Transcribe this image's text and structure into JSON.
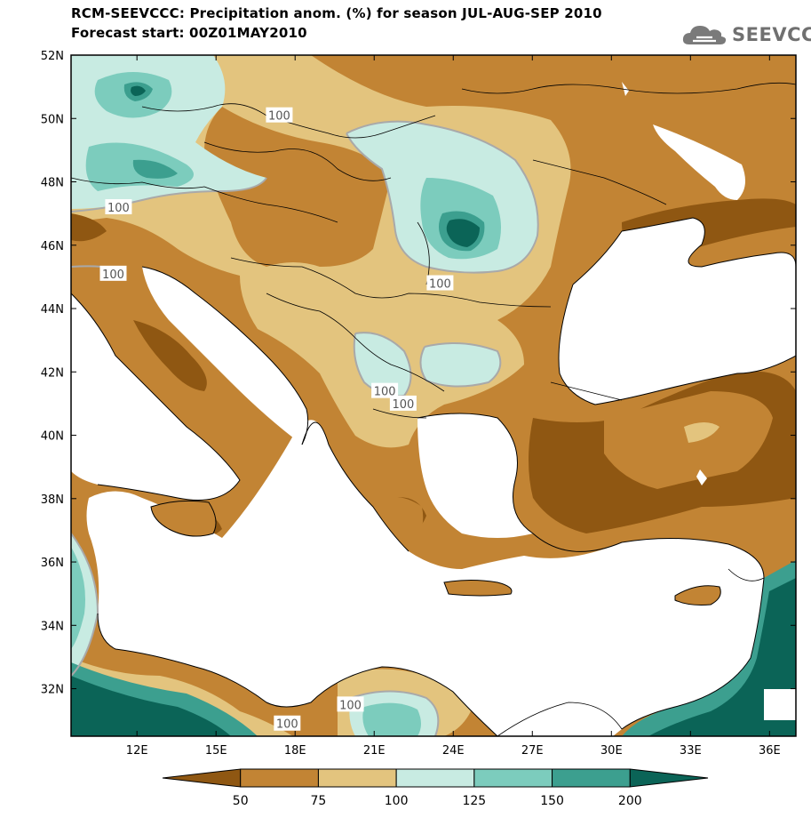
{
  "title": {
    "line1": "RCM-SEEVCCC: Precipitation anom. (%) for season JUL-AUG-SEP 2010",
    "line2": "Forecast start: 00Z01MAY2010"
  },
  "logo": {
    "text": "SEEVCCC",
    "icon": "cloud-icon"
  },
  "map": {
    "lon_range": [
      9.5,
      37.0
    ],
    "lat_range": [
      30.5,
      52.0
    ],
    "lat_ticks": [
      {
        "value": 52,
        "label": "52N"
      },
      {
        "value": 50,
        "label": "50N"
      },
      {
        "value": 48,
        "label": "48N"
      },
      {
        "value": 46,
        "label": "46N"
      },
      {
        "value": 44,
        "label": "44N"
      },
      {
        "value": 42,
        "label": "42N"
      },
      {
        "value": 40,
        "label": "40N"
      },
      {
        "value": 38,
        "label": "38N"
      },
      {
        "value": 36,
        "label": "36N"
      },
      {
        "value": 34,
        "label": "34N"
      },
      {
        "value": 32,
        "label": "32N"
      }
    ],
    "lon_ticks": [
      {
        "value": 12,
        "label": "12E"
      },
      {
        "value": 15,
        "label": "15E"
      },
      {
        "value": 18,
        "label": "18E"
      },
      {
        "value": 21,
        "label": "21E"
      },
      {
        "value": 24,
        "label": "24E"
      },
      {
        "value": 27,
        "label": "27E"
      },
      {
        "value": 30,
        "label": "30E"
      },
      {
        "value": 33,
        "label": "33E"
      },
      {
        "value": 36,
        "label": "36E"
      }
    ],
    "contour_labels": [
      {
        "text": "100",
        "lon": 17.4,
        "lat": 50.1
      },
      {
        "text": "100",
        "lon": 11.3,
        "lat": 47.2
      },
      {
        "text": "100",
        "lon": 11.1,
        "lat": 45.1
      },
      {
        "text": "100",
        "lon": 23.5,
        "lat": 44.8
      },
      {
        "text": "100",
        "lon": 21.4,
        "lat": 41.4
      },
      {
        "text": "100",
        "lon": 22.1,
        "lat": 41.0
      },
      {
        "text": "100",
        "lon": 20.1,
        "lat": 31.5
      },
      {
        "text": "100",
        "lon": 17.7,
        "lat": 30.9
      }
    ]
  },
  "colorbar": {
    "colors": [
      "#8f5712",
      "#c28434",
      "#e3c47e",
      "#c8ebe2",
      "#7cccbd",
      "#3c9f8f",
      "#0b6457"
    ],
    "labels": [
      "50",
      "75",
      "100",
      "125",
      "150",
      "200"
    ]
  },
  "colors": {
    "below_50": "#8f5712",
    "50_75": "#c28434",
    "75_100": "#e3c47e",
    "100_125": "#c8ebe2",
    "125_150": "#7cccbd",
    "150_200": "#3c9f8f",
    "above_200": "#0b6457",
    "sea": "#ffffff",
    "contour_100": "#a9a9a9"
  }
}
